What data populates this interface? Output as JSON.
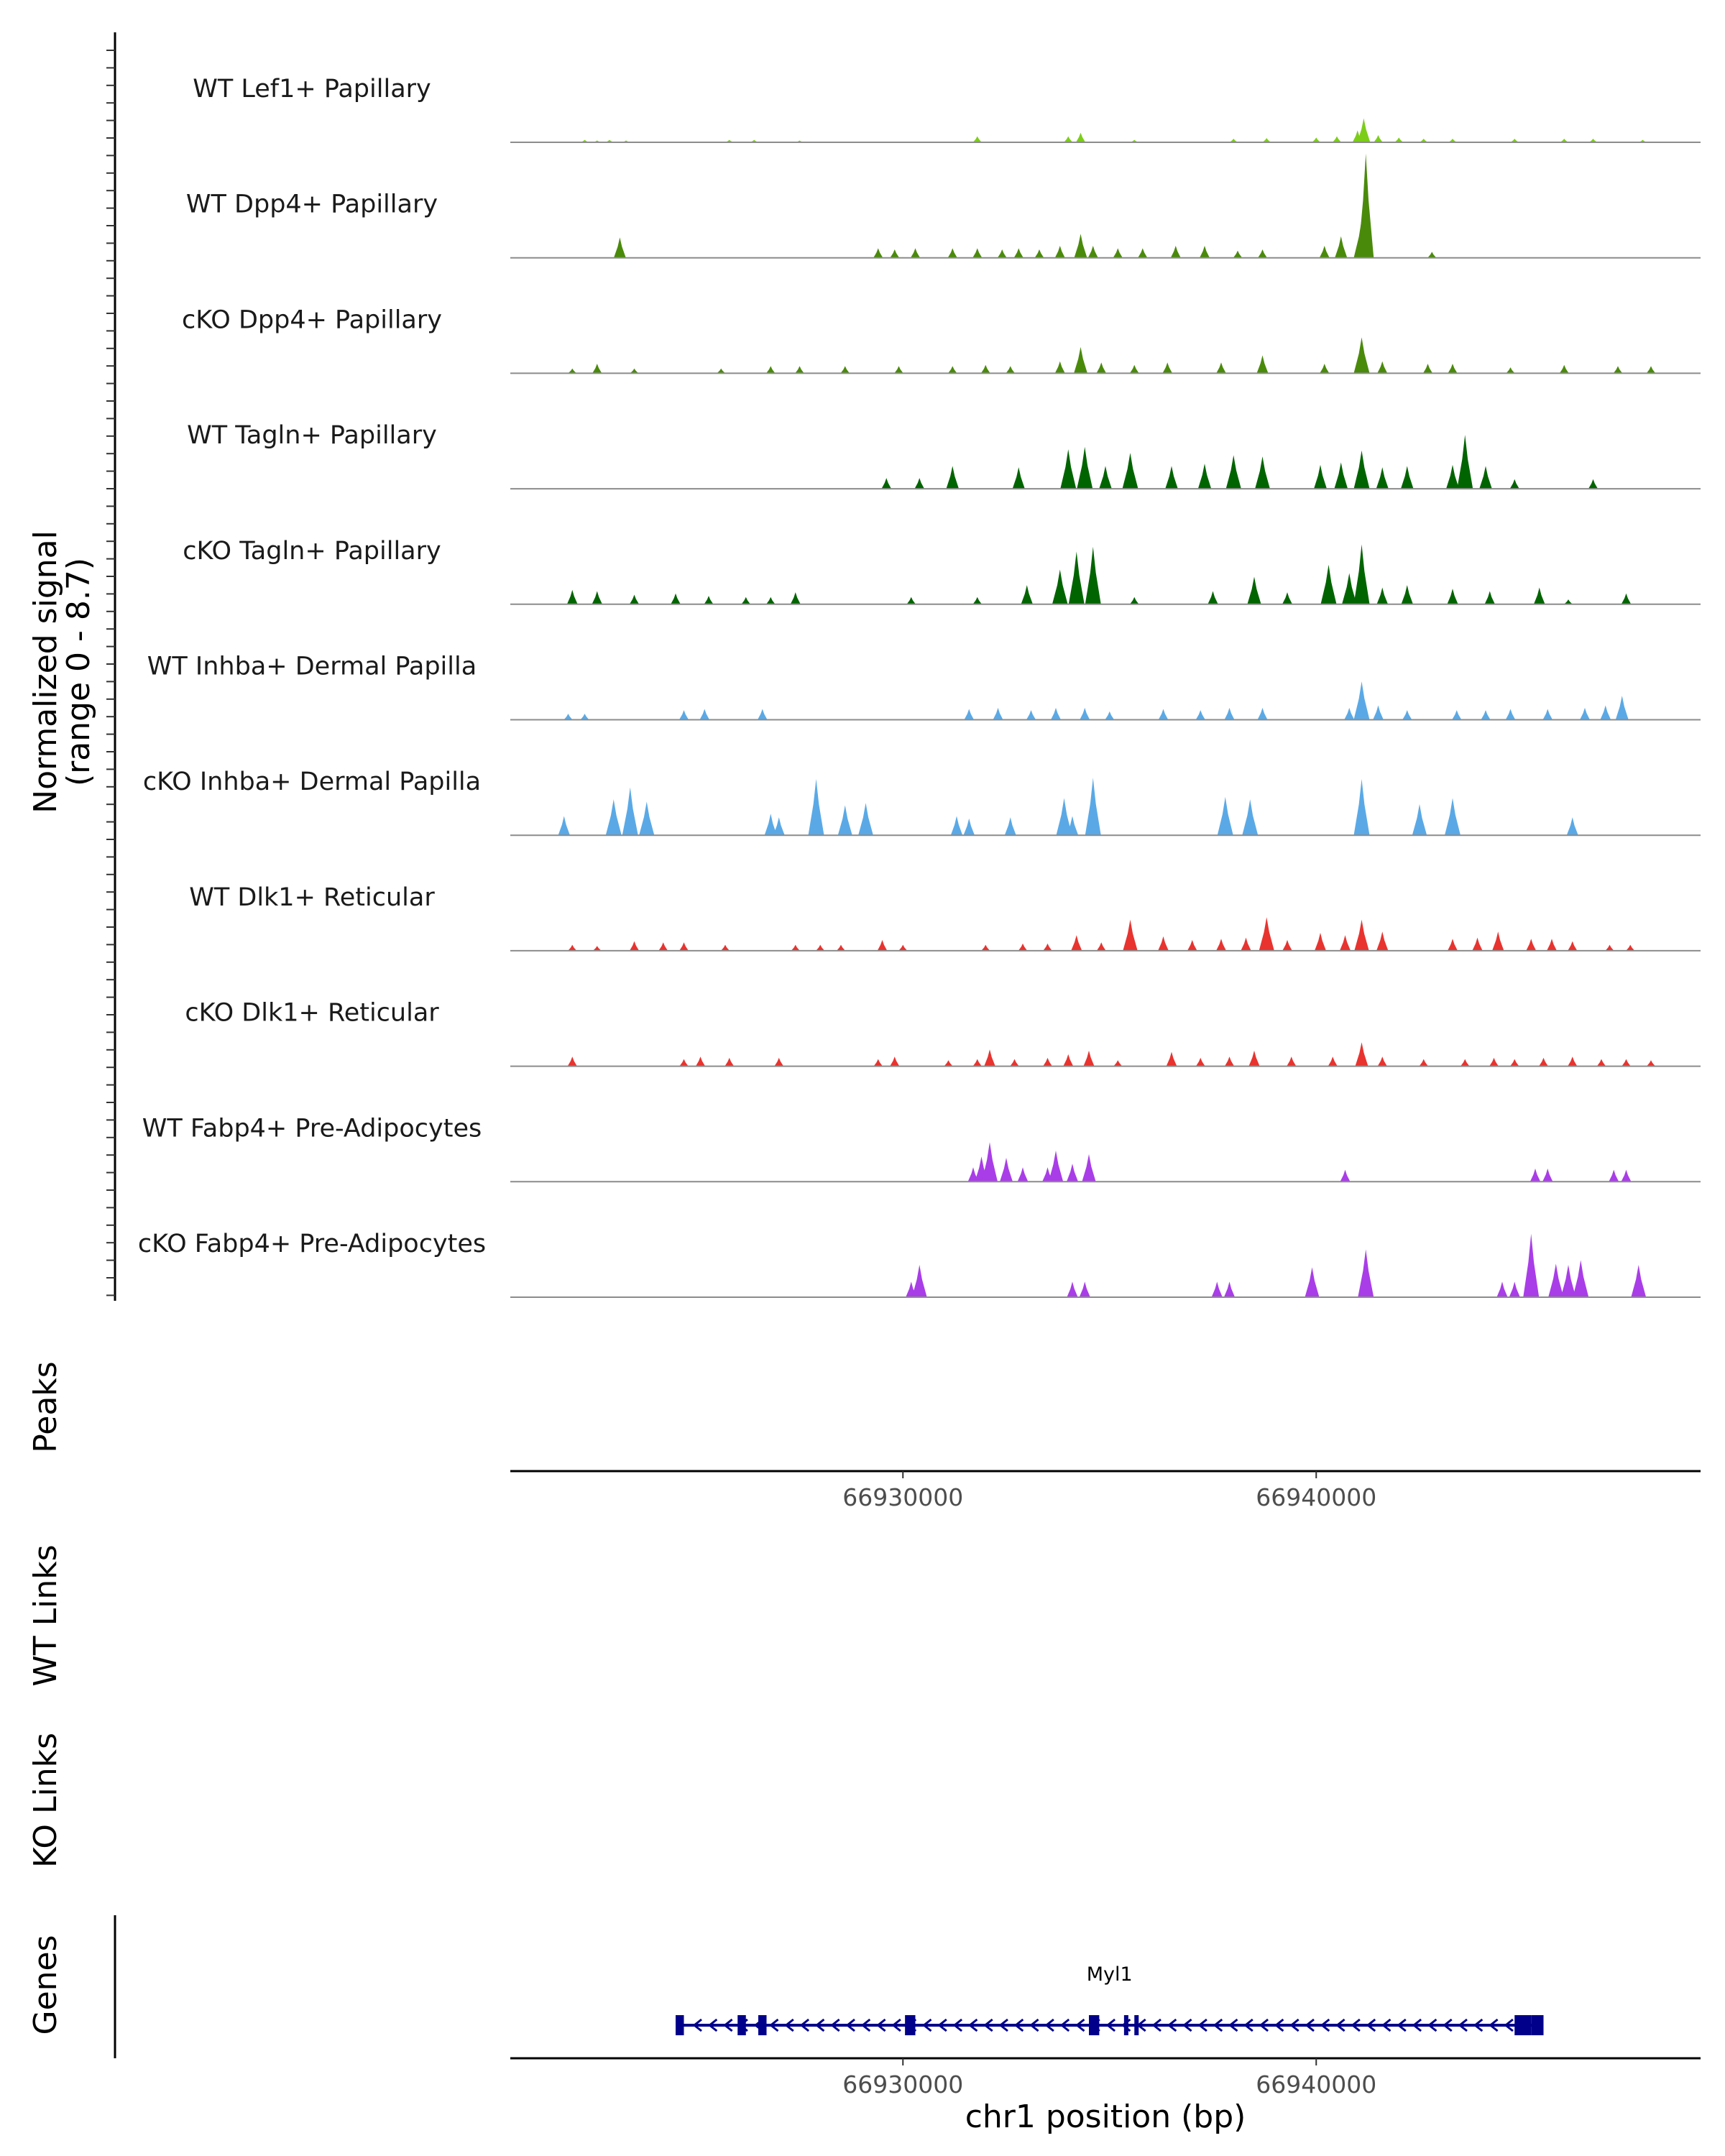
{
  "chart_data": {
    "type": "area",
    "title": "",
    "chromosome": "chr1",
    "xlim": [
      66920500,
      66949300
    ],
    "xlabel": "chr1 position (bp)",
    "x_ticks": [
      66930000,
      66940000
    ],
    "x_tick_labels": [
      "66930000",
      "66940000"
    ],
    "ylabel_line1": "Normalized signal",
    "ylabel_line2": "(range 0 - 8.7)",
    "ylim": [
      0,
      8.7
    ],
    "series": [
      {
        "name": "WT Lef1+ Papillary",
        "color": "#7CCD1A",
        "peaks": [
          [
            66922300,
            0.2
          ],
          [
            66922600,
            0.15
          ],
          [
            66922900,
            0.2
          ],
          [
            66923300,
            0.15
          ],
          [
            66925800,
            0.2
          ],
          [
            66926400,
            0.2
          ],
          [
            66927500,
            0.15
          ],
          [
            66931800,
            0.5
          ],
          [
            66934000,
            0.5
          ],
          [
            66934300,
            0.8
          ],
          [
            66935600,
            0.2
          ],
          [
            66938000,
            0.3
          ],
          [
            66938800,
            0.35
          ],
          [
            66940000,
            0.4
          ],
          [
            66940500,
            0.5
          ],
          [
            66941000,
            1.0
          ],
          [
            66941150,
            2.0
          ],
          [
            66941500,
            0.6
          ],
          [
            66942000,
            0.4
          ],
          [
            66942600,
            0.3
          ],
          [
            66943300,
            0.3
          ],
          [
            66944800,
            0.3
          ],
          [
            66946000,
            0.3
          ],
          [
            66946700,
            0.3
          ],
          [
            66947900,
            0.2
          ]
        ]
      },
      {
        "name": "WT Dpp4+ Papillary",
        "color": "#4A8A0B",
        "peaks": [
          [
            66923150,
            1.7
          ],
          [
            66929400,
            0.8
          ],
          [
            66929800,
            0.7
          ],
          [
            66930300,
            0.8
          ],
          [
            66931200,
            0.8
          ],
          [
            66931800,
            0.8
          ],
          [
            66932400,
            0.7
          ],
          [
            66932800,
            0.8
          ],
          [
            66933300,
            0.7
          ],
          [
            66933800,
            1.0
          ],
          [
            66934300,
            2.0
          ],
          [
            66934600,
            1.0
          ],
          [
            66935200,
            0.8
          ],
          [
            66935800,
            0.8
          ],
          [
            66936600,
            1.0
          ],
          [
            66937300,
            1.0
          ],
          [
            66938100,
            0.6
          ],
          [
            66938700,
            0.7
          ],
          [
            66940200,
            1.0
          ],
          [
            66940600,
            1.8
          ],
          [
            66941100,
            3.2
          ],
          [
            66941200,
            8.7
          ],
          [
            66942800,
            0.5
          ]
        ]
      },
      {
        "name": "cKO Dpp4+ Papillary",
        "color": "#4A8A0B",
        "peaks": [
          [
            66922000,
            0.4
          ],
          [
            66922600,
            0.8
          ],
          [
            66923500,
            0.4
          ],
          [
            66925600,
            0.4
          ],
          [
            66926800,
            0.6
          ],
          [
            66927500,
            0.6
          ],
          [
            66928600,
            0.6
          ],
          [
            66929900,
            0.6
          ],
          [
            66931200,
            0.6
          ],
          [
            66932000,
            0.7
          ],
          [
            66932600,
            0.6
          ],
          [
            66933800,
            1.0
          ],
          [
            66934300,
            2.2
          ],
          [
            66934800,
            0.9
          ],
          [
            66935600,
            0.7
          ],
          [
            66936400,
            0.9
          ],
          [
            66937700,
            0.9
          ],
          [
            66938700,
            1.5
          ],
          [
            66940200,
            0.8
          ],
          [
            66941100,
            3.0
          ],
          [
            66941600,
            1.0
          ],
          [
            66942700,
            0.8
          ],
          [
            66943300,
            0.8
          ],
          [
            66944700,
            0.5
          ],
          [
            66946000,
            0.7
          ],
          [
            66947300,
            0.6
          ],
          [
            66948100,
            0.6
          ]
        ]
      },
      {
        "name": "WT Tagln+ Papillary",
        "color": "#006400",
        "peaks": [
          [
            66929600,
            0.9
          ],
          [
            66930400,
            0.9
          ],
          [
            66931200,
            1.9
          ],
          [
            66932800,
            1.8
          ],
          [
            66934000,
            3.3
          ],
          [
            66934400,
            3.5
          ],
          [
            66934900,
            1.9
          ],
          [
            66935500,
            3.0
          ],
          [
            66936500,
            1.9
          ],
          [
            66937300,
            2.1
          ],
          [
            66938000,
            2.8
          ],
          [
            66938700,
            2.7
          ],
          [
            66940100,
            2.0
          ],
          [
            66940600,
            2.2
          ],
          [
            66941100,
            3.2
          ],
          [
            66941600,
            1.8
          ],
          [
            66942200,
            1.9
          ],
          [
            66943300,
            2.0
          ],
          [
            66943600,
            4.5
          ],
          [
            66944100,
            1.9
          ],
          [
            66944800,
            0.8
          ],
          [
            66946700,
            0.8
          ]
        ]
      },
      {
        "name": "cKO Tagln+ Papillary",
        "color": "#006400",
        "peaks": [
          [
            66922000,
            1.2
          ],
          [
            66922600,
            1.1
          ],
          [
            66923500,
            0.8
          ],
          [
            66924500,
            0.9
          ],
          [
            66925300,
            0.7
          ],
          [
            66926200,
            0.6
          ],
          [
            66926800,
            0.6
          ],
          [
            66927400,
            1.0
          ],
          [
            66930200,
            0.6
          ],
          [
            66931800,
            0.6
          ],
          [
            66933000,
            1.6
          ],
          [
            66933800,
            2.9
          ],
          [
            66934200,
            4.4
          ],
          [
            66934600,
            4.8
          ],
          [
            66935600,
            0.6
          ],
          [
            66937500,
            1.1
          ],
          [
            66938500,
            2.3
          ],
          [
            66939300,
            1.0
          ],
          [
            66940300,
            3.3
          ],
          [
            66940800,
            2.6
          ],
          [
            66941100,
            5.0
          ],
          [
            66941600,
            1.4
          ],
          [
            66942200,
            1.6
          ],
          [
            66943300,
            1.3
          ],
          [
            66944200,
            1.1
          ],
          [
            66945400,
            1.4
          ],
          [
            66946100,
            0.4
          ],
          [
            66947500,
            0.9
          ]
        ]
      },
      {
        "name": "WT Inhba+ Dermal Papilla",
        "color": "#5AA9E6",
        "peaks": [
          [
            66921900,
            0.5
          ],
          [
            66922300,
            0.5
          ],
          [
            66924700,
            0.8
          ],
          [
            66925200,
            0.9
          ],
          [
            66926600,
            0.9
          ],
          [
            66931600,
            0.9
          ],
          [
            66932300,
            1.0
          ],
          [
            66933100,
            0.8
          ],
          [
            66933700,
            1.0
          ],
          [
            66934400,
            1.0
          ],
          [
            66935000,
            0.7
          ],
          [
            66936300,
            0.9
          ],
          [
            66937200,
            0.8
          ],
          [
            66937900,
            1.0
          ],
          [
            66938700,
            1.0
          ],
          [
            66940800,
            1.0
          ],
          [
            66941100,
            3.2
          ],
          [
            66941500,
            1.2
          ],
          [
            66942200,
            0.8
          ],
          [
            66943400,
            0.8
          ],
          [
            66944100,
            0.8
          ],
          [
            66944700,
            0.9
          ],
          [
            66945600,
            0.9
          ],
          [
            66946500,
            1.0
          ],
          [
            66947000,
            1.2
          ],
          [
            66947400,
            2.0
          ]
        ]
      },
      {
        "name": "cKO Inhba+ Dermal Papilla",
        "color": "#5AA9E6",
        "peaks": [
          [
            66921800,
            1.6
          ],
          [
            66923000,
            3.0
          ],
          [
            66923400,
            4.0
          ],
          [
            66923800,
            2.8
          ],
          [
            66926800,
            1.8
          ],
          [
            66927000,
            1.5
          ],
          [
            66927900,
            4.7
          ],
          [
            66928600,
            2.5
          ],
          [
            66929100,
            2.7
          ],
          [
            66931300,
            1.6
          ],
          [
            66931600,
            1.4
          ],
          [
            66932600,
            1.5
          ],
          [
            66933900,
            3.1
          ],
          [
            66934100,
            1.6
          ],
          [
            66934600,
            4.8
          ],
          [
            66937800,
            3.2
          ],
          [
            66938400,
            3.0
          ],
          [
            66941100,
            4.7
          ],
          [
            66942500,
            2.6
          ],
          [
            66943300,
            3.1
          ],
          [
            66946200,
            1.5
          ]
        ]
      },
      {
        "name": "WT Dlk1+ Reticular",
        "color": "#E8332F",
        "peaks": [
          [
            66922000,
            0.5
          ],
          [
            66922600,
            0.4
          ],
          [
            66923500,
            0.8
          ],
          [
            66924200,
            0.7
          ],
          [
            66924700,
            0.7
          ],
          [
            66925700,
            0.5
          ],
          [
            66927400,
            0.5
          ],
          [
            66928000,
            0.5
          ],
          [
            66928500,
            0.5
          ],
          [
            66929500,
            0.9
          ],
          [
            66930000,
            0.5
          ],
          [
            66932000,
            0.5
          ],
          [
            66932900,
            0.6
          ],
          [
            66933500,
            0.6
          ],
          [
            66934200,
            1.3
          ],
          [
            66934800,
            0.7
          ],
          [
            66935500,
            2.6
          ],
          [
            66936300,
            1.2
          ],
          [
            66937000,
            0.9
          ],
          [
            66937700,
            1.0
          ],
          [
            66938300,
            1.1
          ],
          [
            66938800,
            2.8
          ],
          [
            66939300,
            0.9
          ],
          [
            66940100,
            1.5
          ],
          [
            66940700,
            1.3
          ],
          [
            66941100,
            2.6
          ],
          [
            66941600,
            1.6
          ],
          [
            66943300,
            1.0
          ],
          [
            66943900,
            1.1
          ],
          [
            66944400,
            1.6
          ],
          [
            66945200,
            1.0
          ],
          [
            66945700,
            1.0
          ],
          [
            66946200,
            0.8
          ],
          [
            66947100,
            0.5
          ],
          [
            66947600,
            0.5
          ]
        ]
      },
      {
        "name": "cKO Dlk1+ Reticular",
        "color": "#E8332F",
        "peaks": [
          [
            66922000,
            0.8
          ],
          [
            66924700,
            0.6
          ],
          [
            66925100,
            0.8
          ],
          [
            66925800,
            0.7
          ],
          [
            66927000,
            0.7
          ],
          [
            66929400,
            0.6
          ],
          [
            66929800,
            0.8
          ],
          [
            66931100,
            0.5
          ],
          [
            66931800,
            0.6
          ],
          [
            66932100,
            1.4
          ],
          [
            66932700,
            0.6
          ],
          [
            66933500,
            0.7
          ],
          [
            66934000,
            1.0
          ],
          [
            66934500,
            1.3
          ],
          [
            66935200,
            0.5
          ],
          [
            66936500,
            1.2
          ],
          [
            66937200,
            0.7
          ],
          [
            66937900,
            0.8
          ],
          [
            66938500,
            1.3
          ],
          [
            66939400,
            0.8
          ],
          [
            66940400,
            0.8
          ],
          [
            66941100,
            2.0
          ],
          [
            66941600,
            0.8
          ],
          [
            66942600,
            0.6
          ],
          [
            66943600,
            0.6
          ],
          [
            66944300,
            0.7
          ],
          [
            66944800,
            0.6
          ],
          [
            66945500,
            0.7
          ],
          [
            66946200,
            0.8
          ],
          [
            66946900,
            0.6
          ],
          [
            66947500,
            0.6
          ],
          [
            66948100,
            0.5
          ]
        ]
      },
      {
        "name": "WT Fabp4+ Pre-Adipocytes",
        "color": "#A93DE8",
        "peaks": [
          [
            66931700,
            1.2
          ],
          [
            66931900,
            2.1
          ],
          [
            66932100,
            3.3
          ],
          [
            66932500,
            2.0
          ],
          [
            66932900,
            1.2
          ],
          [
            66933500,
            1.2
          ],
          [
            66933700,
            2.6
          ],
          [
            66934100,
            1.5
          ],
          [
            66934500,
            2.3
          ],
          [
            66940700,
            1.0
          ],
          [
            66945300,
            1.1
          ],
          [
            66945600,
            1.1
          ],
          [
            66947200,
            1.0
          ],
          [
            66947500,
            1.0
          ]
        ]
      },
      {
        "name": "cKO Fabp4+ Pre-Adipocytes",
        "color": "#A93DE8",
        "peaks": [
          [
            66930200,
            1.3
          ],
          [
            66930400,
            2.7
          ],
          [
            66934100,
            1.3
          ],
          [
            66934400,
            1.3
          ],
          [
            66937600,
            1.3
          ],
          [
            66937900,
            1.3
          ],
          [
            66939900,
            2.5
          ],
          [
            66941200,
            4.0
          ],
          [
            66944500,
            1.3
          ],
          [
            66944800,
            1.3
          ],
          [
            66945200,
            5.3
          ],
          [
            66945800,
            2.8
          ],
          [
            66946100,
            2.7
          ],
          [
            66946400,
            3.1
          ],
          [
            66947800,
            2.7
          ]
        ]
      }
    ],
    "panels": {
      "peaks_label": "Peaks",
      "wt_links_label": "WT Links",
      "ko_links_label": "KO Links",
      "genes_label": "Genes"
    },
    "gene": {
      "name": "Myl1",
      "color": "#00008B",
      "start": 66924500,
      "end": 66945500,
      "strand": "-",
      "exons": [
        [
          66924500,
          66924700
        ],
        [
          66926000,
          66926200
        ],
        [
          66926500,
          66926700
        ],
        [
          66930050,
          66930300
        ],
        [
          66934500,
          66934750
        ],
        [
          66935350,
          66935450
        ],
        [
          66935600,
          66935700
        ],
        [
          66944800,
          66945200
        ],
        [
          66945200,
          66945500
        ]
      ]
    }
  }
}
